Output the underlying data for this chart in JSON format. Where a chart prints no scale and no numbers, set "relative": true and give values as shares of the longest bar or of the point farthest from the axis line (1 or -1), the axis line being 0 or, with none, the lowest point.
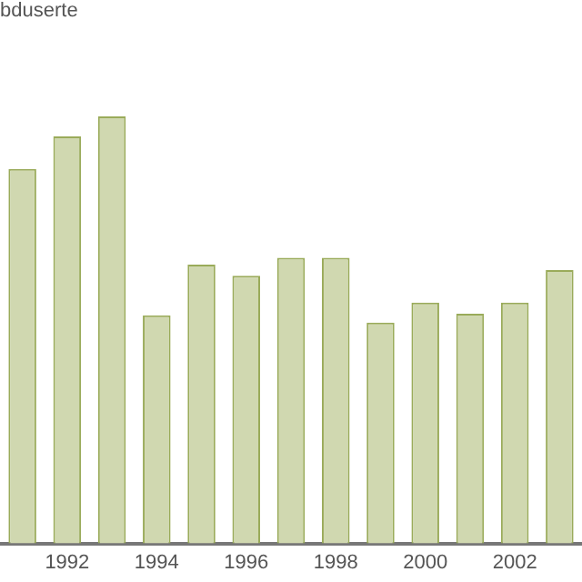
{
  "chart_data": {
    "type": "bar",
    "title": "bduserte",
    "categories": [
      null,
      "1992",
      null,
      "1994",
      null,
      "1996",
      null,
      "1998",
      null,
      "2000",
      null,
      "2002",
      null
    ],
    "values": [
      0.877,
      0.953,
      1,
      0.534,
      0.653,
      0.627,
      0.669,
      0.669,
      0.517,
      0.564,
      0.538,
      0.564,
      0.64
    ],
    "color": "#d0d8b0",
    "relative": true,
    "grid": false,
    "legend": false
  }
}
